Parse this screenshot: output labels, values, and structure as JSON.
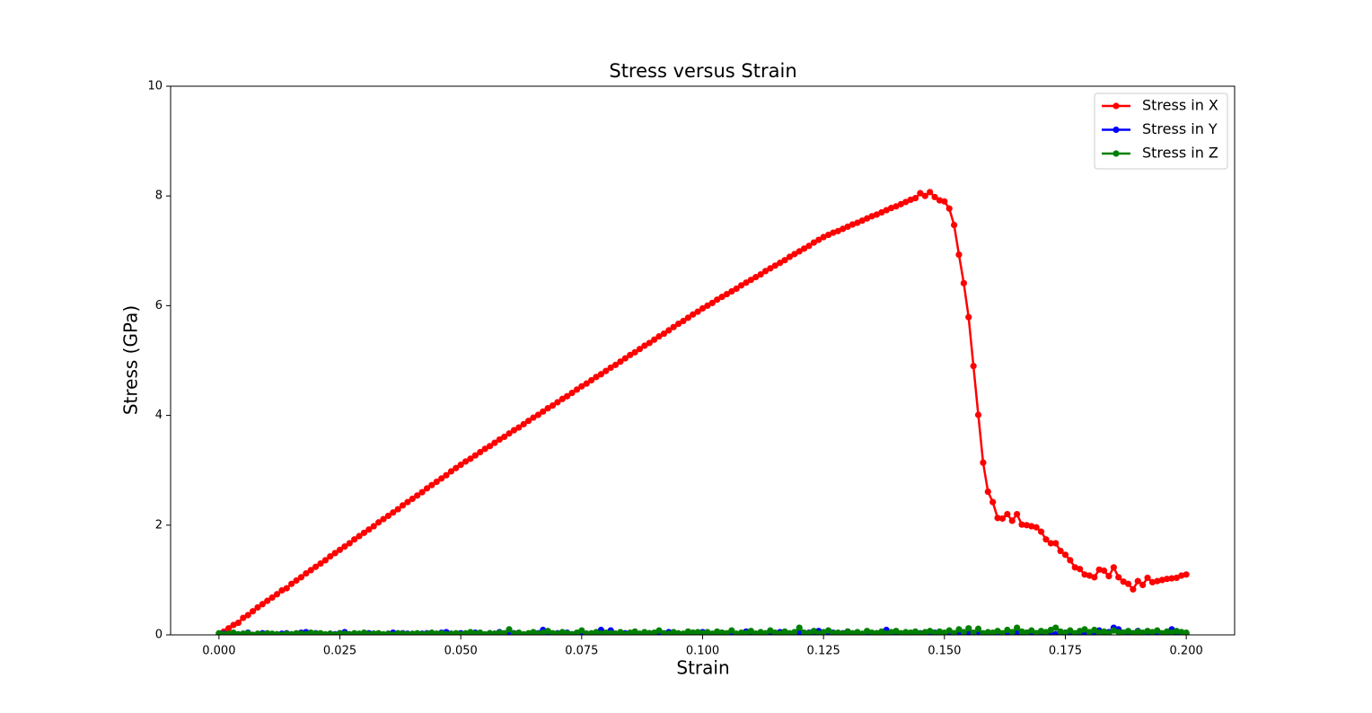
{
  "chart_data": {
    "type": "line",
    "title": "Stress versus Strain",
    "xlabel": "Strain",
    "ylabel": "Stress (GPa)",
    "xlim": [
      -0.01,
      0.21
    ],
    "ylim": [
      0,
      10
    ],
    "xticks": [
      {
        "value": 0,
        "label": "0.000"
      },
      {
        "value": 0.025,
        "label": "0.025"
      },
      {
        "value": 0.05,
        "label": "0.050"
      },
      {
        "value": 0.075,
        "label": "0.075"
      },
      {
        "value": 0.1,
        "label": "0.100"
      },
      {
        "value": 0.125,
        "label": "0.125"
      },
      {
        "value": 0.15,
        "label": "0.150"
      },
      {
        "value": 0.175,
        "label": "0.175"
      },
      {
        "value": 0.2,
        "label": "0.200"
      }
    ],
    "yticks": [
      0,
      2,
      4,
      6,
      8,
      10
    ],
    "grid": false,
    "legend": "upper right",
    "markers": true,
    "x": [
      0,
      0.001,
      0.002,
      0.003,
      0.004,
      0.005,
      0.006,
      0.007,
      0.008,
      0.009,
      0.01,
      0.011,
      0.012,
      0.013,
      0.014,
      0.015,
      0.016,
      0.017,
      0.018,
      0.019,
      0.02,
      0.021,
      0.022,
      0.023,
      0.024,
      0.025,
      0.026,
      0.027,
      0.028,
      0.029,
      0.03,
      0.031,
      0.032,
      0.033,
      0.034,
      0.035,
      0.036,
      0.037,
      0.038,
      0.039,
      0.04,
      0.041,
      0.042,
      0.043,
      0.044,
      0.045,
      0.046,
      0.047,
      0.048,
      0.049,
      0.05,
      0.051,
      0.052,
      0.053,
      0.054,
      0.055,
      0.056,
      0.057,
      0.058,
      0.059,
      0.06,
      0.061,
      0.062,
      0.063,
      0.064,
      0.065,
      0.066,
      0.067,
      0.068,
      0.069,
      0.07,
      0.071,
      0.072,
      0.073,
      0.074,
      0.075,
      0.076,
      0.077,
      0.078,
      0.079,
      0.08,
      0.081,
      0.082,
      0.083,
      0.084,
      0.085,
      0.086,
      0.087,
      0.088,
      0.089,
      0.09,
      0.091,
      0.092,
      0.093,
      0.094,
      0.095,
      0.096,
      0.097,
      0.098,
      0.099,
      0.1,
      0.101,
      0.102,
      0.103,
      0.104,
      0.105,
      0.106,
      0.107,
      0.108,
      0.109,
      0.11,
      0.111,
      0.112,
      0.113,
      0.114,
      0.115,
      0.116,
      0.117,
      0.118,
      0.119,
      0.12,
      0.121,
      0.122,
      0.123,
      0.124,
      0.125,
      0.126,
      0.127,
      0.128,
      0.129,
      0.13,
      0.131,
      0.132,
      0.133,
      0.134,
      0.135,
      0.136,
      0.137,
      0.138,
      0.139,
      0.14,
      0.141,
      0.142,
      0.143,
      0.144,
      0.145,
      0.146,
      0.147,
      0.148,
      0.149,
      0.15,
      0.151,
      0.152,
      0.153,
      0.154,
      0.155,
      0.156,
      0.157,
      0.158,
      0.159,
      0.16,
      0.161,
      0.162,
      0.163,
      0.164,
      0.165,
      0.166,
      0.167,
      0.168,
      0.169,
      0.17,
      0.171,
      0.172,
      0.173,
      0.174,
      0.175,
      0.176,
      0.177,
      0.178,
      0.179,
      0.18,
      0.181,
      0.182,
      0.183,
      0.184,
      0.185,
      0.186,
      0.187,
      0.188,
      0.189,
      0.19,
      0.191,
      0.192,
      0.193,
      0.194,
      0.195,
      0.196,
      0.197,
      0.198,
      0.199,
      0.2
    ],
    "series": [
      {
        "name": "Stress in X",
        "color": "#ff0000",
        "values": [
          0,
          0.06,
          0.12,
          0.18,
          0.22,
          0.31,
          0.36,
          0.43,
          0.5,
          0.56,
          0.62,
          0.68,
          0.74,
          0.81,
          0.85,
          0.93,
          0.99,
          1.05,
          1.12,
          1.18,
          1.24,
          1.3,
          1.36,
          1.43,
          1.49,
          1.55,
          1.61,
          1.67,
          1.74,
          1.8,
          1.86,
          1.92,
          1.98,
          2.05,
          2.11,
          2.17,
          2.23,
          2.29,
          2.36,
          2.42,
          2.48,
          2.54,
          2.6,
          2.67,
          2.73,
          2.79,
          2.85,
          2.91,
          2.98,
          3.04,
          3.1,
          3.16,
          3.21,
          3.27,
          3.33,
          3.39,
          3.44,
          3.5,
          3.56,
          3.61,
          3.67,
          3.73,
          3.78,
          3.84,
          3.9,
          3.96,
          4.01,
          4.07,
          4.13,
          4.18,
          4.24,
          4.3,
          4.35,
          4.41,
          4.47,
          4.53,
          4.58,
          4.64,
          4.7,
          4.75,
          4.81,
          4.87,
          4.92,
          4.98,
          5.04,
          5.1,
          5.15,
          5.21,
          5.27,
          5.32,
          5.38,
          5.44,
          5.49,
          5.55,
          5.61,
          5.67,
          5.72,
          5.78,
          5.84,
          5.89,
          5.95,
          6.0,
          6.05,
          6.11,
          6.16,
          6.21,
          6.26,
          6.31,
          6.37,
          6.42,
          6.47,
          6.52,
          6.57,
          6.63,
          6.68,
          6.73,
          6.78,
          6.83,
          6.89,
          6.94,
          6.99,
          7.04,
          7.09,
          7.15,
          7.2,
          7.25,
          7.29,
          7.33,
          7.36,
          7.4,
          7.44,
          7.48,
          7.51,
          7.55,
          7.59,
          7.63,
          7.66,
          7.7,
          7.74,
          7.78,
          7.81,
          7.85,
          7.89,
          7.93,
          7.96,
          8.05,
          8.0,
          8.07,
          7.98,
          7.92,
          7.9,
          7.77,
          7.47,
          6.93,
          6.41,
          5.79,
          4.9,
          4.01,
          3.14,
          2.61,
          2.42,
          2.13,
          2.12,
          2.2,
          2.08,
          2.2,
          2.01,
          2.0,
          1.98,
          1.96,
          1.88,
          1.74,
          1.67,
          1.67,
          1.53,
          1.46,
          1.36,
          1.23,
          1.2,
          1.1,
          1.08,
          1.05,
          1.19,
          1.17,
          1.07,
          1.23,
          1.05,
          0.97,
          0.93,
          0.83,
          0.98,
          0.91,
          1.04,
          0.96,
          0.98,
          1.0,
          1.02,
          1.03,
          1.04,
          1.08,
          1.1
        ]
      },
      {
        "name": "Stress in Y",
        "color": "#0000ff",
        "values": [
          0.01,
          0.02,
          0,
          0.03,
          0.01,
          0.02,
          0.04,
          0,
          0.01,
          0.03,
          0.02,
          0,
          0.01,
          0.02,
          0.03,
          0.01,
          0,
          0.04,
          0.05,
          0.02,
          0.03,
          0.01,
          0,
          0.02,
          0.01,
          0.03,
          0.05,
          0.01,
          0.02,
          0,
          0.01,
          0.03,
          0.02,
          0.01,
          0,
          0.02,
          0.04,
          0.01,
          0.03,
          0.02,
          0,
          0.01,
          0.02,
          0.03,
          0.01,
          0.02,
          0.04,
          0.05,
          0.02,
          0.01,
          0.03,
          0.02,
          0.01,
          0.04,
          0.02,
          0,
          0.03,
          0.02,
          0.05,
          0.01,
          0.02,
          0.03,
          0.01,
          0,
          0.02,
          0.04,
          0.03,
          0.09,
          0.02,
          0.01,
          0.03,
          0.02,
          0.04,
          0.01,
          0,
          0.03,
          0.02,
          0.01,
          0.04,
          0.09,
          0.03,
          0.08,
          0.02,
          0.01,
          0.03,
          0.02,
          0.04,
          0.01,
          0.02,
          0.03,
          0.01,
          0.04,
          0.02,
          0.05,
          0.03,
          0.02,
          0.01,
          0.03,
          0.04,
          0.02,
          0.05,
          0.03,
          0.01,
          0.02,
          0.04,
          0.02,
          0.03,
          0.01,
          0.02,
          0.06,
          0.03,
          0.02,
          0.04,
          0.01,
          0.03,
          0.02,
          0.05,
          0.04,
          0.01,
          0.02,
          0.03,
          0.02,
          0.04,
          0.01,
          0.07,
          0.03,
          0.02,
          0.04,
          0.01,
          0.03,
          0.06,
          0.02,
          0.03,
          0.01,
          0.04,
          0.02,
          0.03,
          0.05,
          0.09,
          0.02,
          0.03,
          0.01,
          0.04,
          0.02,
          0.05,
          0.03,
          0.02,
          0.01,
          0.04,
          0.03,
          0.02,
          0.05,
          0.03,
          0.01,
          0.04,
          0.02,
          0.03,
          0.06,
          0.02,
          0.01,
          0.03,
          0.04,
          0.02,
          0.01,
          0.03,
          0.05,
          0.02,
          0.04,
          0.01,
          0.03,
          0.02,
          0.04,
          0.03,
          0.01,
          0.02,
          0.04,
          0.03,
          0.02,
          0.05,
          0.01,
          0.03,
          0.02,
          0.08,
          0.03,
          0.05,
          0.13,
          0.1,
          0.04,
          0.02,
          0.03,
          0.07,
          0.02,
          0.04,
          0.03,
          0.05,
          0.02,
          0.04,
          0.1,
          0.03,
          0.05,
          0.02
        ]
      },
      {
        "name": "Stress in Z",
        "color": "#008000",
        "values": [
          0.03,
          0.01,
          0.02,
          0.04,
          0.01,
          0.02,
          0.03,
          0,
          0.02,
          0.01,
          0.03,
          0.02,
          0.01,
          0,
          0.02,
          0.01,
          0.03,
          0.02,
          0.01,
          0.04,
          0.02,
          0.03,
          0.01,
          0.02,
          0,
          0.03,
          0.02,
          0.01,
          0.03,
          0.02,
          0.04,
          0.01,
          0.02,
          0.03,
          0.01,
          0.02,
          0,
          0.03,
          0.02,
          0.01,
          0.02,
          0.03,
          0.01,
          0.02,
          0.04,
          0.02,
          0.03,
          0.01,
          0.02,
          0.03,
          0.01,
          0.03,
          0.05,
          0.02,
          0.04,
          0.01,
          0.03,
          0.02,
          0.04,
          0.03,
          0.1,
          0.02,
          0.04,
          0.01,
          0.03,
          0.05,
          0.02,
          0.04,
          0.07,
          0.03,
          0.02,
          0.05,
          0.03,
          0.01,
          0.04,
          0.08,
          0.02,
          0.03,
          0.05,
          0.02,
          0.04,
          0.03,
          0.02,
          0.05,
          0.01,
          0.04,
          0.06,
          0.02,
          0.05,
          0.03,
          0.04,
          0.08,
          0.03,
          0.02,
          0.05,
          0.03,
          0.02,
          0.06,
          0.04,
          0.05,
          0.03,
          0.05,
          0.02,
          0.06,
          0.04,
          0.03,
          0.08,
          0.02,
          0.04,
          0.03,
          0.07,
          0.02,
          0.05,
          0.03,
          0.08,
          0.04,
          0.02,
          0.06,
          0.03,
          0.05,
          0.13,
          0.04,
          0.03,
          0.07,
          0.02,
          0.05,
          0.08,
          0.03,
          0.04,
          0.02,
          0.06,
          0.03,
          0.05,
          0.02,
          0.07,
          0.04,
          0.03,
          0.06,
          0.02,
          0.05,
          0.07,
          0.03,
          0.05,
          0.04,
          0.06,
          0.02,
          0.05,
          0.07,
          0.03,
          0.06,
          0.04,
          0.08,
          0.03,
          0.1,
          0.05,
          0.12,
          0.04,
          0.11,
          0.03,
          0.05,
          0.04,
          0.07,
          0.03,
          0.09,
          0.05,
          0.13,
          0.06,
          0.04,
          0.08,
          0.03,
          0.07,
          0.05,
          0.09,
          0.13,
          0.06,
          0.04,
          0.08,
          0.03,
          0.07,
          0.1,
          0.05,
          0.09,
          0.04,
          0.06,
          0.03,
          0.08,
          0.05,
          0.04,
          0.07,
          0.03,
          0.06,
          0.04,
          0.07,
          0.05,
          0.08,
          0.03,
          0.06,
          0.04,
          0.07,
          0.05,
          0.04
        ]
      }
    ]
  }
}
